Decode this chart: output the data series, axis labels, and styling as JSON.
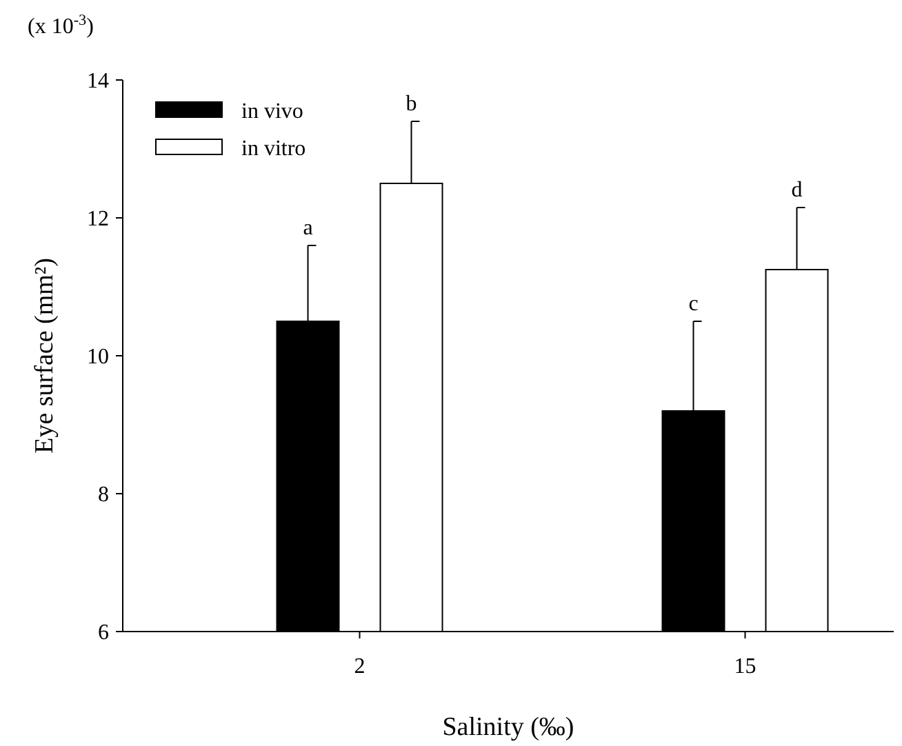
{
  "chart_data": {
    "type": "bar",
    "xlabel": "Salinity (‰)",
    "ylabel": "Eye surface (mm²)",
    "categories": [
      "2",
      "15"
    ],
    "series": [
      {
        "name": "in vivo",
        "color": "#000000",
        "values": [
          10.5,
          9.2
        ],
        "errors": [
          1.1,
          1.3
        ]
      },
      {
        "name": "in vitro",
        "color": "#ffffff",
        "values": [
          12.5,
          11.25
        ],
        "errors": [
          0.9,
          0.9
        ]
      }
    ],
    "ylim": [
      6,
      14
    ],
    "yticks": [
      6,
      8,
      10,
      12,
      14
    ],
    "legend": "top left",
    "grid": false,
    "annotations": [
      "(x 10$^{-3}$)",
      "a",
      "b",
      "c",
      "d"
    ]
  }
}
